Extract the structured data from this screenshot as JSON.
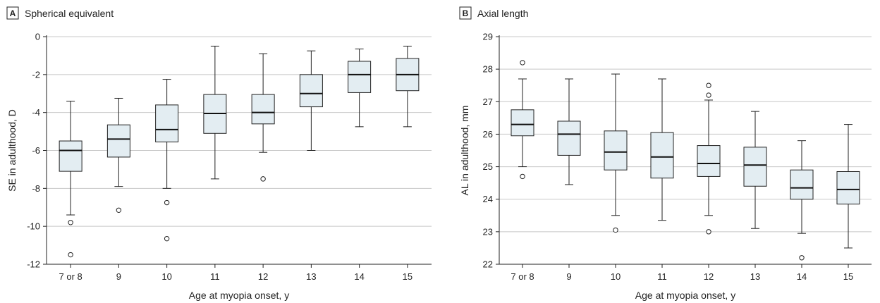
{
  "chart_data": [
    {
      "type": "box",
      "panel_letter": "A",
      "title": "Spherical equivalent",
      "xlabel": "Age at myopia onset, y",
      "ylabel": "SE in adulthood, D",
      "categories": [
        "7 or 8",
        "9",
        "10",
        "11",
        "12",
        "13",
        "14",
        "15"
      ],
      "ylim": [
        -12,
        0
      ],
      "yticks": [
        0,
        -2,
        -4,
        -6,
        -8,
        -10,
        -12
      ],
      "grid": true,
      "box_color": "#e3edf2",
      "boxes": [
        {
          "whisker_low": -9.4,
          "q1": -7.1,
          "median": -6.0,
          "q3": -5.5,
          "whisker_high": -3.4,
          "outliers": [
            -9.8,
            -11.5
          ]
        },
        {
          "whisker_low": -7.9,
          "q1": -6.35,
          "median": -5.4,
          "q3": -4.65,
          "whisker_high": -3.25,
          "outliers": [
            -9.15
          ]
        },
        {
          "whisker_low": -8.0,
          "q1": -5.55,
          "median": -4.9,
          "q3": -3.6,
          "whisker_high": -2.25,
          "outliers": [
            -8.75,
            -10.65
          ]
        },
        {
          "whisker_low": -7.5,
          "q1": -5.1,
          "median": -4.05,
          "q3": -3.05,
          "whisker_high": -0.5,
          "outliers": []
        },
        {
          "whisker_low": -6.1,
          "q1": -4.6,
          "median": -4.0,
          "q3": -3.05,
          "whisker_high": -0.9,
          "outliers": [
            -7.5
          ]
        },
        {
          "whisker_low": -6.0,
          "q1": -3.7,
          "median": -3.0,
          "q3": -2.0,
          "whisker_high": -0.75,
          "outliers": []
        },
        {
          "whisker_low": -4.75,
          "q1": -2.95,
          "median": -2.0,
          "q3": -1.3,
          "whisker_high": -0.65,
          "outliers": []
        },
        {
          "whisker_low": -4.75,
          "q1": -2.85,
          "median": -2.0,
          "q3": -1.15,
          "whisker_high": -0.5,
          "outliers": []
        }
      ]
    },
    {
      "type": "box",
      "panel_letter": "B",
      "title": "Axial length",
      "xlabel": "Age at myopia onset, y",
      "ylabel": "AL in adulthood, mm",
      "categories": [
        "7 or 8",
        "9",
        "10",
        "11",
        "12",
        "13",
        "14",
        "15"
      ],
      "ylim": [
        22,
        29
      ],
      "yticks": [
        29,
        28,
        27,
        26,
        25,
        24,
        23,
        22
      ],
      "grid": true,
      "box_color": "#e3edf2",
      "boxes": [
        {
          "whisker_low": 25.0,
          "q1": 25.95,
          "median": 26.3,
          "q3": 26.75,
          "whisker_high": 27.7,
          "outliers": [
            28.2,
            24.7
          ]
        },
        {
          "whisker_low": 24.45,
          "q1": 25.35,
          "median": 26.0,
          "q3": 26.4,
          "whisker_high": 27.7,
          "outliers": []
        },
        {
          "whisker_low": 23.5,
          "q1": 24.9,
          "median": 25.45,
          "q3": 26.1,
          "whisker_high": 27.85,
          "outliers": [
            23.05
          ]
        },
        {
          "whisker_low": 23.35,
          "q1": 24.65,
          "median": 25.3,
          "q3": 26.05,
          "whisker_high": 27.7,
          "outliers": []
        },
        {
          "whisker_low": 23.5,
          "q1": 24.7,
          "median": 25.1,
          "q3": 25.65,
          "whisker_high": 27.05,
          "outliers": [
            27.5,
            27.2,
            23.0
          ]
        },
        {
          "whisker_low": 23.1,
          "q1": 24.4,
          "median": 25.05,
          "q3": 25.6,
          "whisker_high": 26.7,
          "outliers": []
        },
        {
          "whisker_low": 22.95,
          "q1": 24.0,
          "median": 24.35,
          "q3": 24.9,
          "whisker_high": 25.8,
          "outliers": [
            22.2
          ]
        },
        {
          "whisker_low": 22.5,
          "q1": 23.85,
          "median": 24.3,
          "q3": 24.85,
          "whisker_high": 26.3,
          "outliers": []
        }
      ]
    }
  ]
}
